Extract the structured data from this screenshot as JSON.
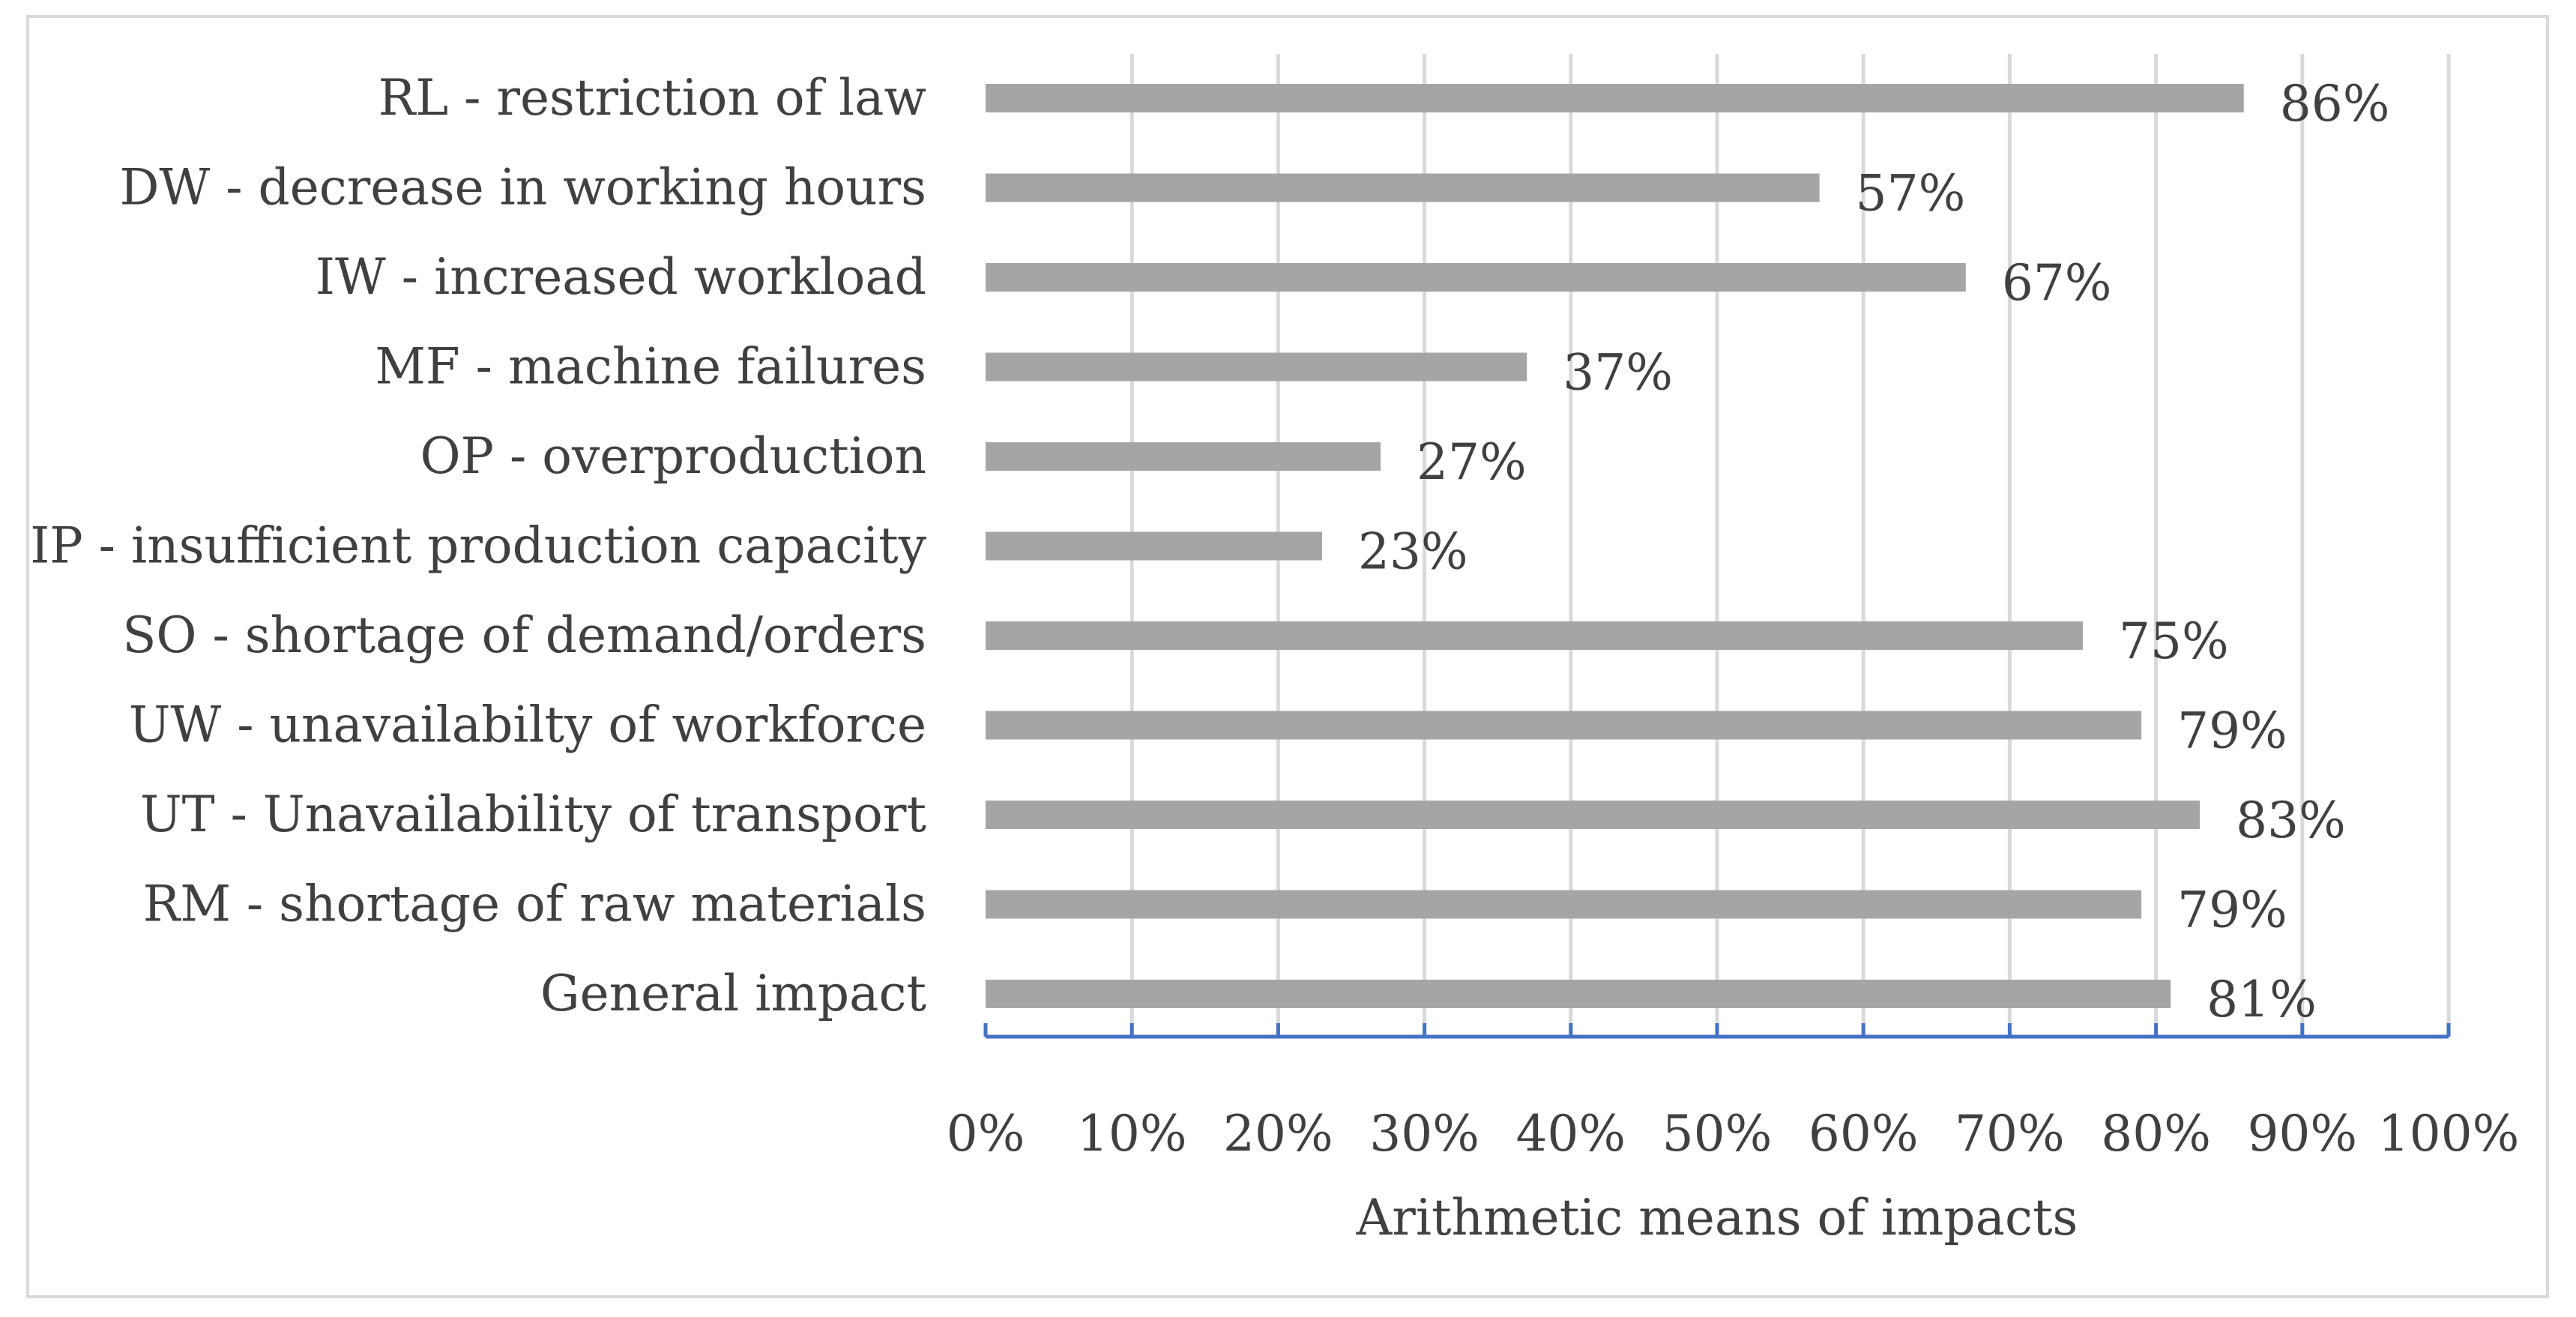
{
  "chart_data": {
    "type": "bar",
    "orientation": "horizontal",
    "categories": [
      "RL - restriction of law",
      "DW - decrease in working hours",
      "IW - increased workload",
      "MF - machine failures",
      "OP - overproduction",
      "IP - insufficient production capacity",
      "SO - shortage of demand/orders",
      "UW - unavailabilty of workforce",
      "UT - Unavailability of transport",
      "RM - shortage of raw materials",
      "General impact"
    ],
    "values": [
      0.86,
      0.57,
      0.67,
      0.37,
      0.27,
      0.23,
      0.75,
      0.79,
      0.83,
      0.79,
      0.81
    ],
    "data_labels": [
      "86%",
      "57%",
      "67%",
      "37%",
      "27%",
      "23%",
      "75%",
      "79%",
      "83%",
      "79%",
      "81%"
    ],
    "title": "",
    "xlabel": "Arithmetic means of impacts",
    "ylabel": "",
    "xlim": [
      0,
      1
    ],
    "x_ticks": [
      "0%",
      "10%",
      "20%",
      "30%",
      "40%",
      "50%",
      "60%",
      "70%",
      "80%",
      "90%",
      "100%"
    ],
    "grid": true,
    "legend": "none",
    "colors": {
      "bar": "#a5a5a5",
      "axis": "#4472c4",
      "grid": "#d9d9d9",
      "text": "#404040"
    }
  }
}
